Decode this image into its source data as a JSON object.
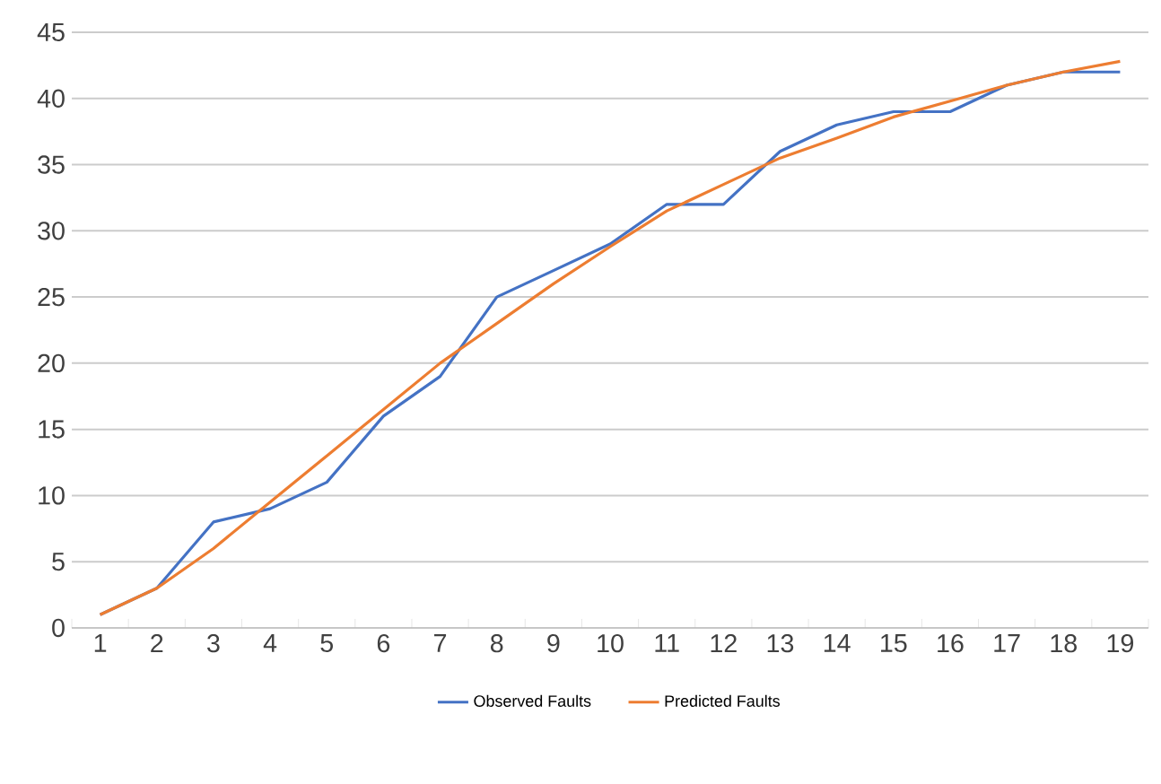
{
  "chart_data": {
    "type": "line",
    "categories": [
      "1",
      "2",
      "3",
      "4",
      "5",
      "6",
      "7",
      "8",
      "9",
      "10",
      "11",
      "12",
      "13",
      "14",
      "15",
      "16",
      "17",
      "18",
      "19"
    ],
    "series": [
      {
        "name": "Observed Faults",
        "color": "#4472c4",
        "values": [
          1,
          3,
          8,
          9,
          11,
          16,
          19,
          25,
          27,
          29,
          32,
          32,
          36,
          38,
          39,
          39,
          41,
          42,
          42
        ]
      },
      {
        "name": "Predicted Faults",
        "color": "#ed7d31",
        "values": [
          1,
          3,
          6,
          9.5,
          13,
          16.5,
          20,
          23,
          26,
          28.8,
          31.5,
          33.5,
          35.5,
          37,
          38.6,
          39.8,
          41,
          42,
          42.8
        ]
      }
    ],
    "ylim": [
      0,
      45
    ],
    "yticks": [
      0,
      5,
      10,
      15,
      20,
      25,
      30,
      35,
      40,
      45
    ],
    "grid": "y",
    "legend": "bottom",
    "marker": "none",
    "line_style": "solid"
  }
}
